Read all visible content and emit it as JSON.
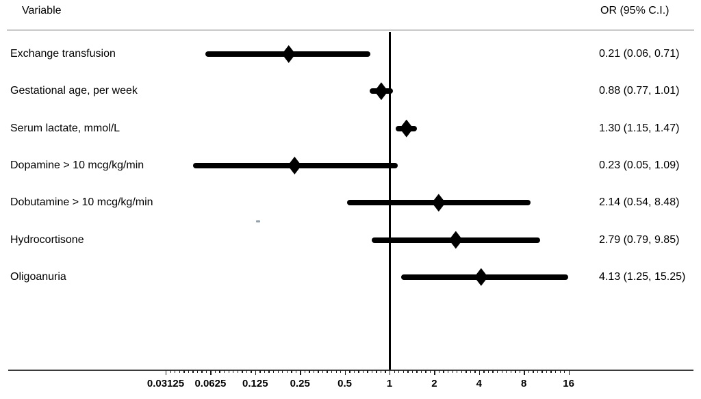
{
  "header": {
    "variable_column": "Variable",
    "or_column": "OR (95% C.I.)"
  },
  "chart_data": {
    "type": "scatter",
    "variant": "forest-plot",
    "title": "",
    "xlabel": "",
    "ylabel": "",
    "x_scale": "log2",
    "grid": false,
    "legend_position": "none",
    "reference_line_x": 1,
    "x_tick_values": [
      0.03125,
      0.0625,
      0.125,
      0.25,
      0.5,
      1,
      2,
      4,
      8,
      16
    ],
    "x_tick_labels": [
      "0.03125",
      "0.0625",
      "0.125",
      "0.25",
      "0.5",
      "1",
      "2",
      "4",
      "8",
      "16"
    ],
    "xlim": [
      0.015,
      28
    ],
    "rows": [
      {
        "label": "Exchange transfusion",
        "or": 0.21,
        "ci_low": 0.06,
        "ci_high": 0.71,
        "text": "0.21 (0.06, 0.71)"
      },
      {
        "label": "Gestational age, per week",
        "or": 0.88,
        "ci_low": 0.77,
        "ci_high": 1.01,
        "text": "0.88 (0.77, 1.01)"
      },
      {
        "label": "Serum lactate, mmol/L",
        "or": 1.3,
        "ci_low": 1.15,
        "ci_high": 1.47,
        "text": "1.30 (1.15, 1.47)"
      },
      {
        "label": "Dopamine > 10 mcg/kg/min",
        "or": 0.23,
        "ci_low": 0.05,
        "ci_high": 1.09,
        "text": "0.23 (0.05, 1.09)"
      },
      {
        "label": "Dobutamine > 10 mcg/kg/min",
        "or": 2.14,
        "ci_low": 0.54,
        "ci_high": 8.48,
        "text": "2.14 (0.54, 8.48)"
      },
      {
        "label": "Hydrocortisone",
        "or": 2.79,
        "ci_low": 0.79,
        "ci_high": 9.85,
        "text": "2.79 (0.79, 9.85)"
      },
      {
        "label": "Oligoanuria",
        "or": 4.13,
        "ci_low": 1.25,
        "ci_high": 15.25,
        "text": "4.13 (1.25, 15.25)"
      }
    ]
  },
  "colors": {
    "marker": "#000000",
    "text": "#000000",
    "axis_line": "#3a3a3a",
    "separator": "#c8c8c8"
  }
}
